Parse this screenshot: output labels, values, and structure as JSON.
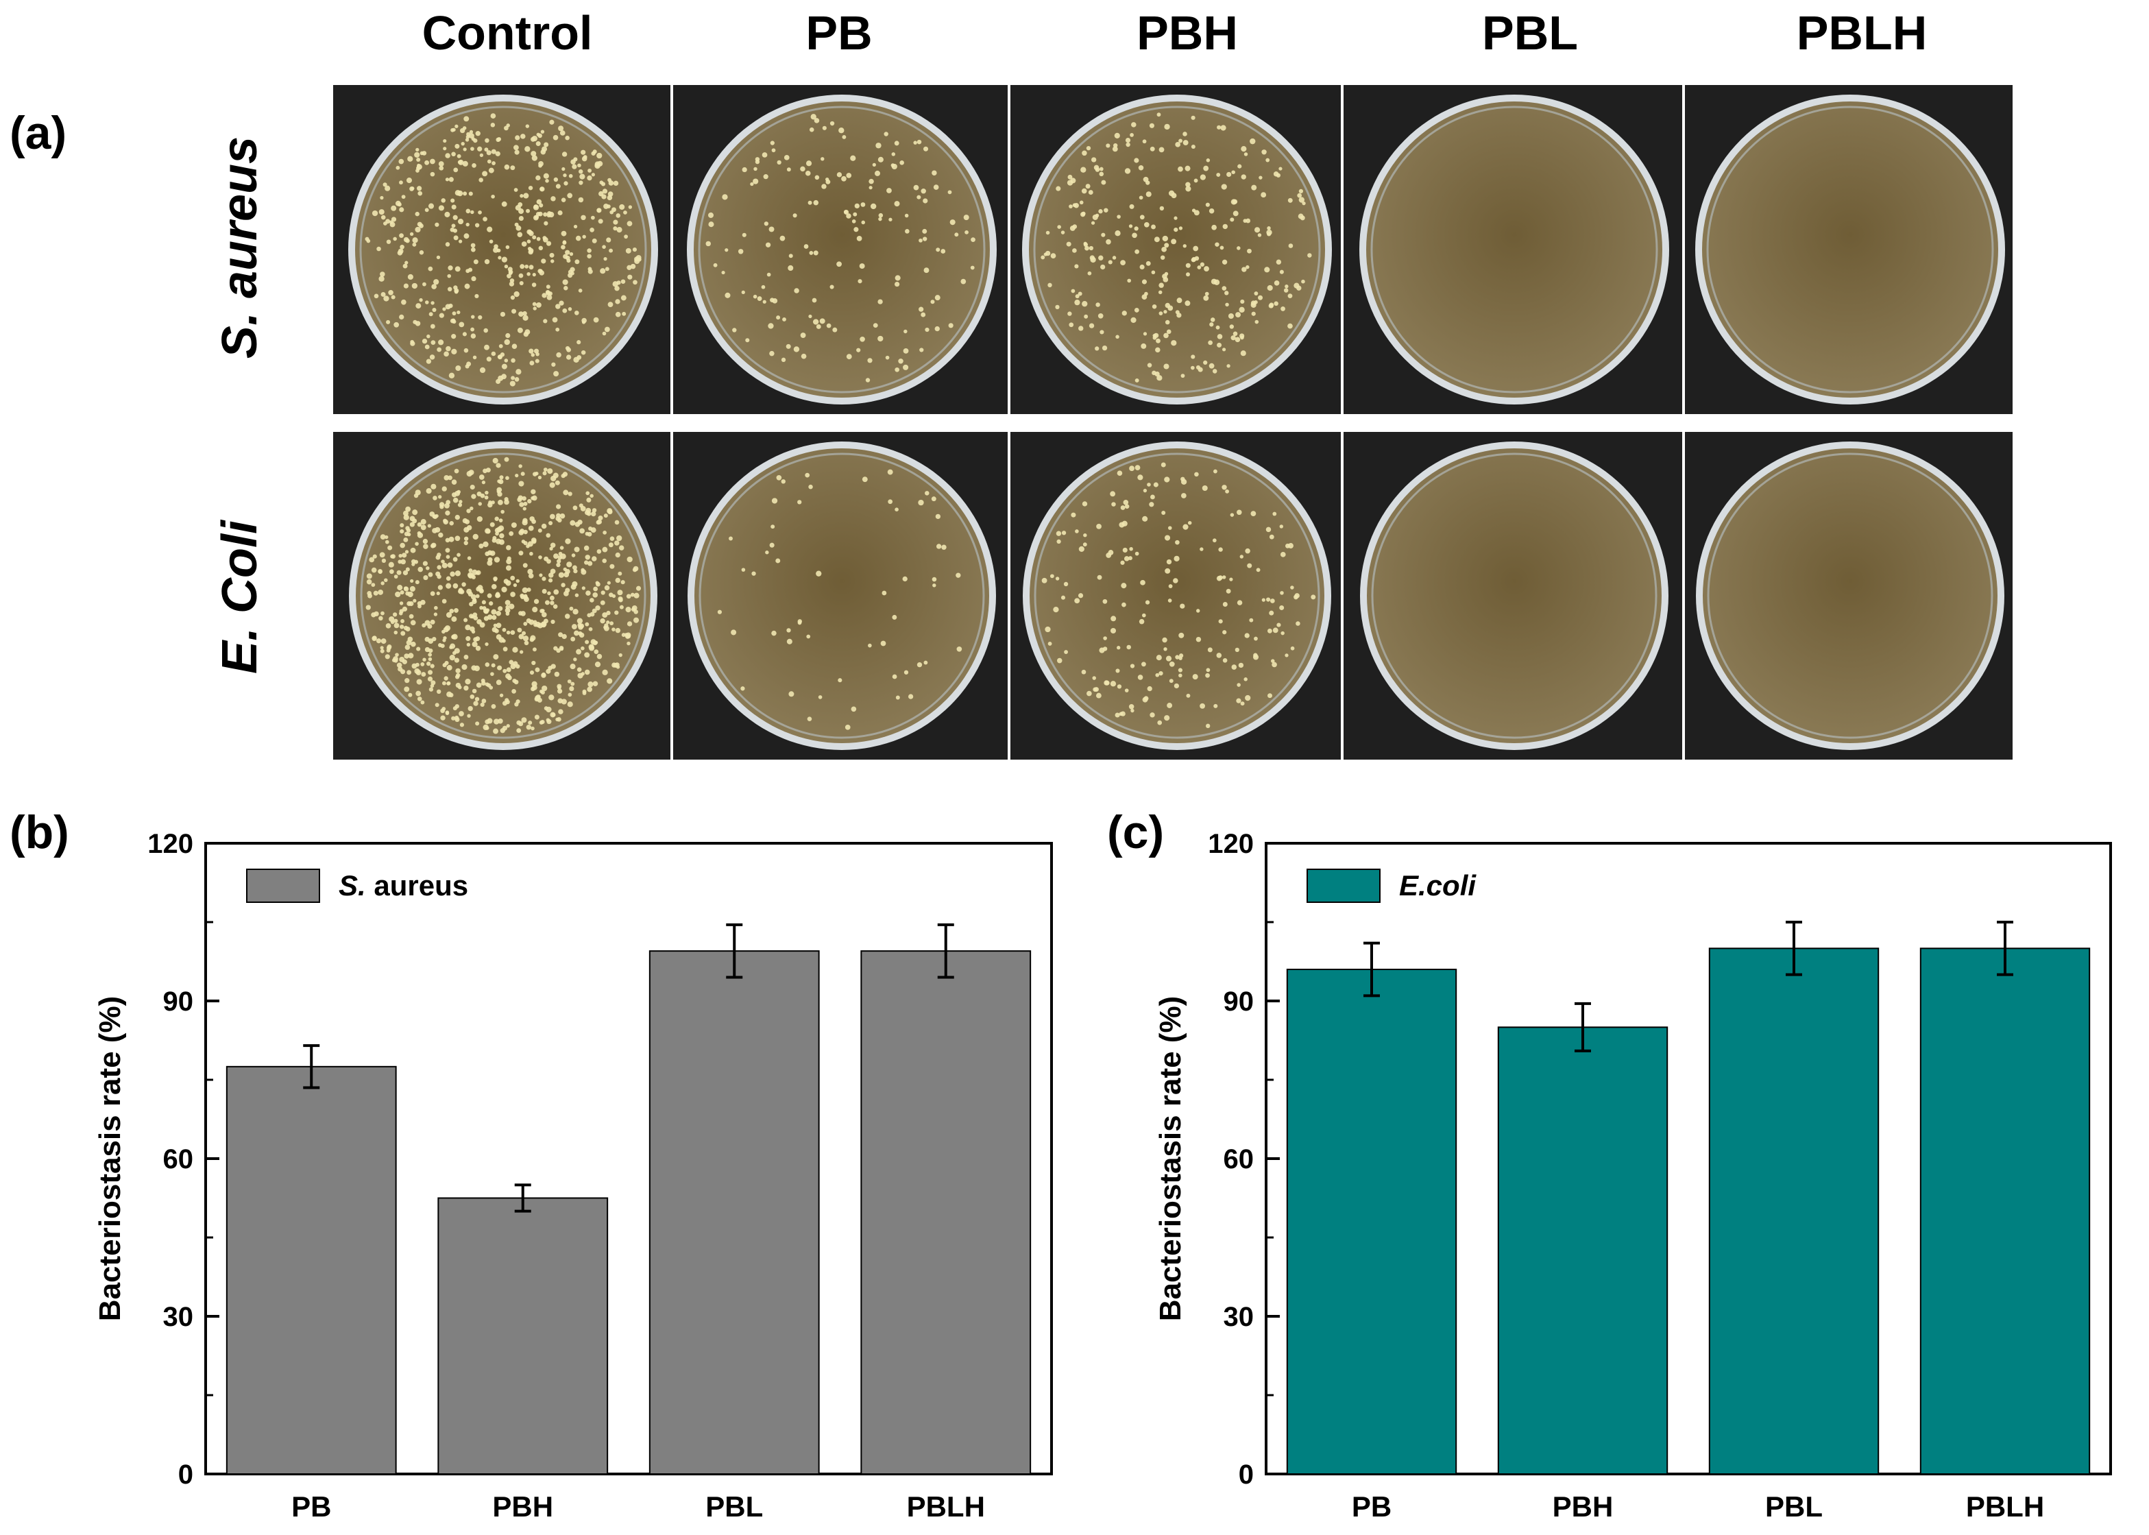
{
  "panel_a": {
    "label": "(a)",
    "columns": [
      "Control",
      "PB",
      "PBH",
      "PBL",
      "PBLH"
    ],
    "rows": [
      "S. aureus",
      "E. Coli"
    ],
    "plates": [
      [
        {
          "colony_level": 0.55
        },
        {
          "colony_level": 0.18
        },
        {
          "colony_level": 0.32
        },
        {
          "colony_level": 0.0
        },
        {
          "colony_level": 0.0
        }
      ],
      [
        {
          "colony_level": 0.9
        },
        {
          "colony_level": 0.06
        },
        {
          "colony_level": 0.22
        },
        {
          "colony_level": 0.0
        },
        {
          "colony_level": 0.0
        }
      ]
    ],
    "colors": {
      "background": "#1f1f1f",
      "agar": "#8a7a55",
      "agar_center": "#6f5d36",
      "rim": "#d8dde0",
      "colony": "#f0e6b0"
    }
  },
  "chart_data": [
    {
      "panel_label": "(b)",
      "type": "bar",
      "categories": [
        "PB",
        "PBH",
        "PBL",
        "PBLH"
      ],
      "series": [
        {
          "name": "S. aureus",
          "name_italic": "S.",
          "name_rest": " aureus",
          "values": [
            77.5,
            52.5,
            99.5,
            99.5
          ],
          "errors": [
            4,
            2.5,
            5,
            5
          ]
        }
      ],
      "xlabel": "",
      "ylabel": "Bacteriostasis rate (%)",
      "ylim": [
        0,
        120
      ],
      "yticks": [
        0,
        30,
        60,
        90,
        120
      ],
      "color": "#808080",
      "legend": "top-left",
      "grid": false
    },
    {
      "panel_label": "(c)",
      "type": "bar",
      "categories": [
        "PB",
        "PBH",
        "PBL",
        "PBLH"
      ],
      "series": [
        {
          "name": "E.coli",
          "name_italic": "E.coli",
          "name_rest": "",
          "values": [
            96,
            85,
            100,
            100
          ],
          "errors": [
            5,
            4.5,
            5,
            5
          ]
        }
      ],
      "xlabel": "",
      "ylabel": "Bacteriostasis rate (%)",
      "ylim": [
        0,
        120
      ],
      "yticks": [
        0,
        30,
        60,
        90,
        120
      ],
      "color": "#008080",
      "legend": "top-left",
      "grid": false
    }
  ]
}
